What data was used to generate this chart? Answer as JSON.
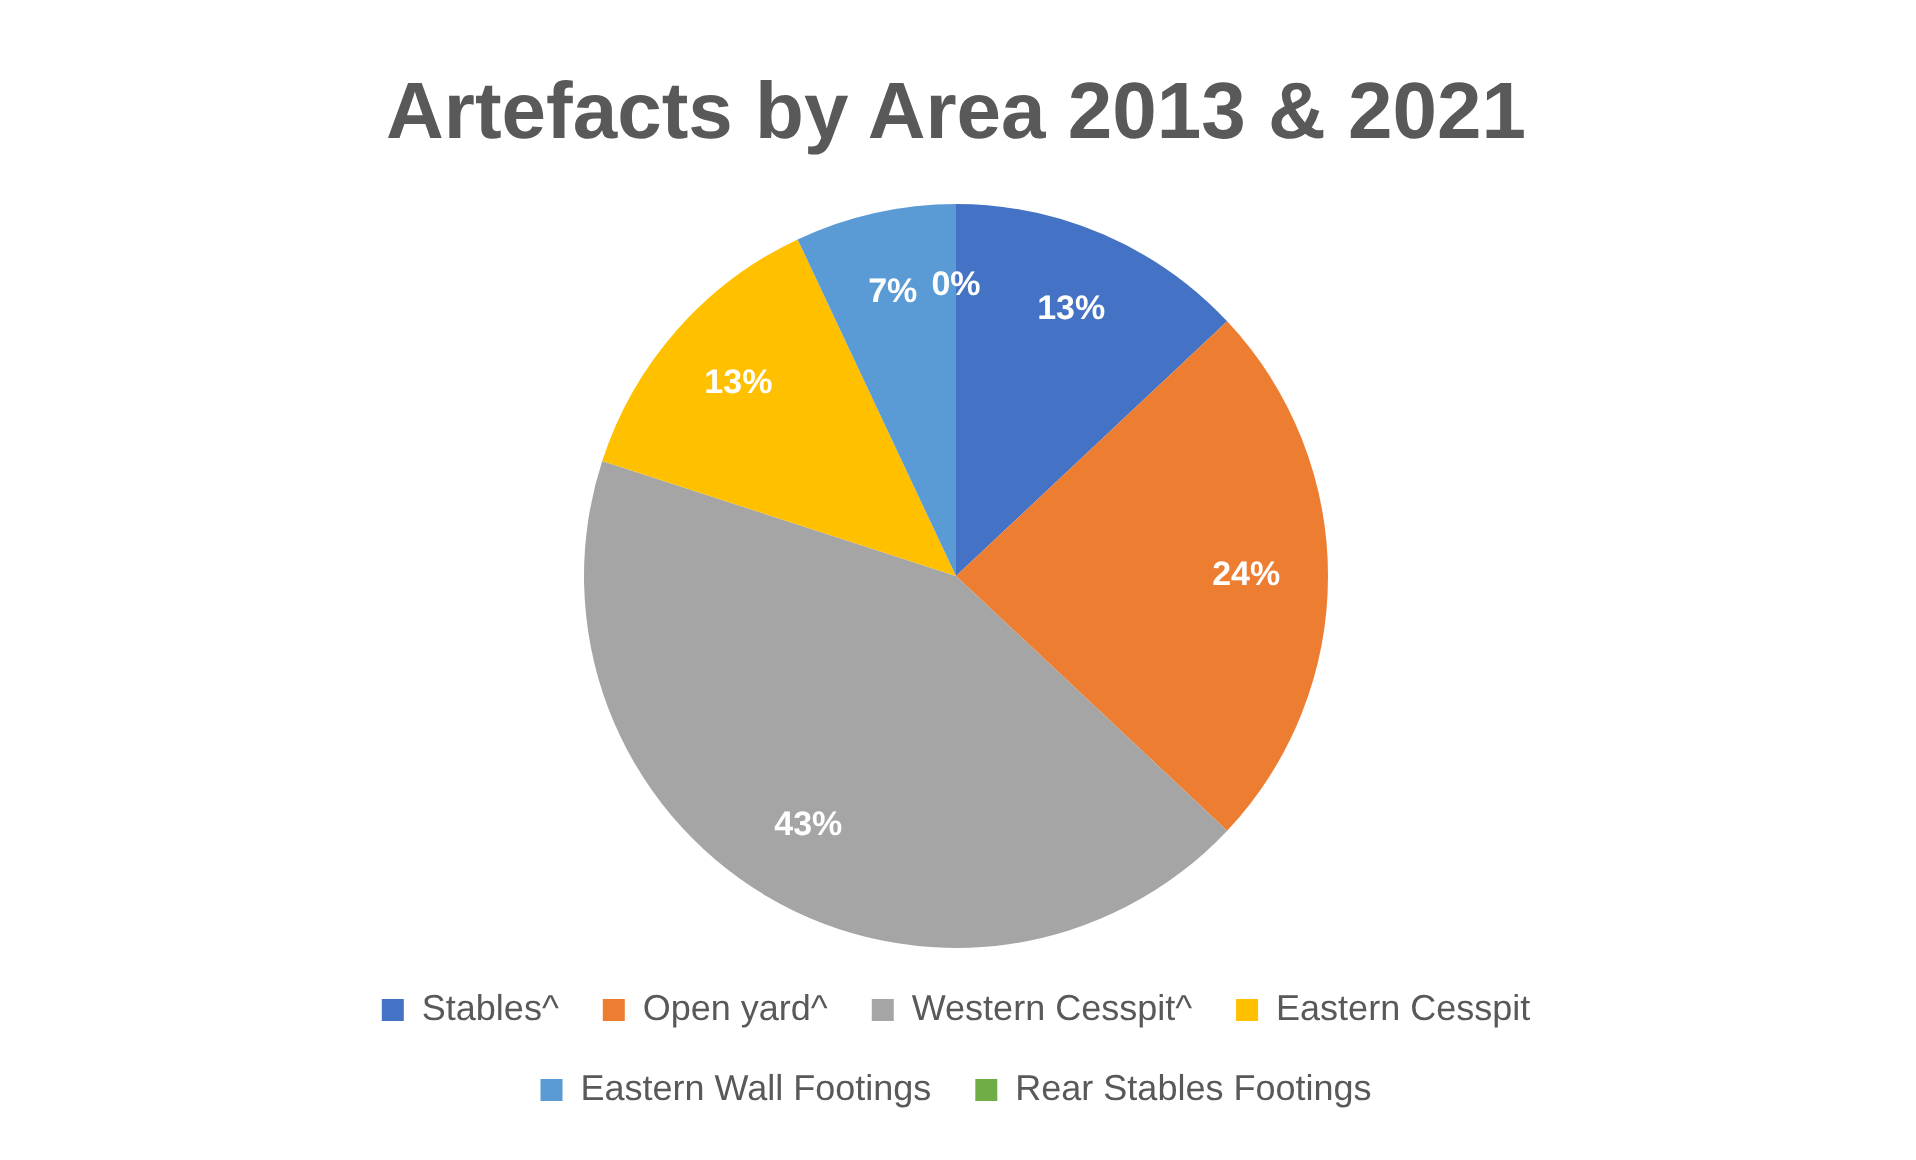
{
  "chart_data": {
    "type": "pie",
    "title": "Artefacts by Area 2013 & 2021",
    "categories": [
      "Stables^",
      "Open yard^",
      "Western Cesspit^",
      "Eastern Cesspit",
      "Eastern Wall Footings",
      "Rear Stables Footings"
    ],
    "values": [
      13,
      24,
      43,
      13,
      7,
      0
    ],
    "colors": [
      "#4472c4",
      "#ed7d31",
      "#a5a5a5",
      "#ffc000",
      "#5b9bd5",
      "#70ad47"
    ],
    "value_labels": [
      "13%",
      "24%",
      "43%",
      "13%",
      "7%",
      "0%"
    ],
    "legend": "bottom"
  }
}
